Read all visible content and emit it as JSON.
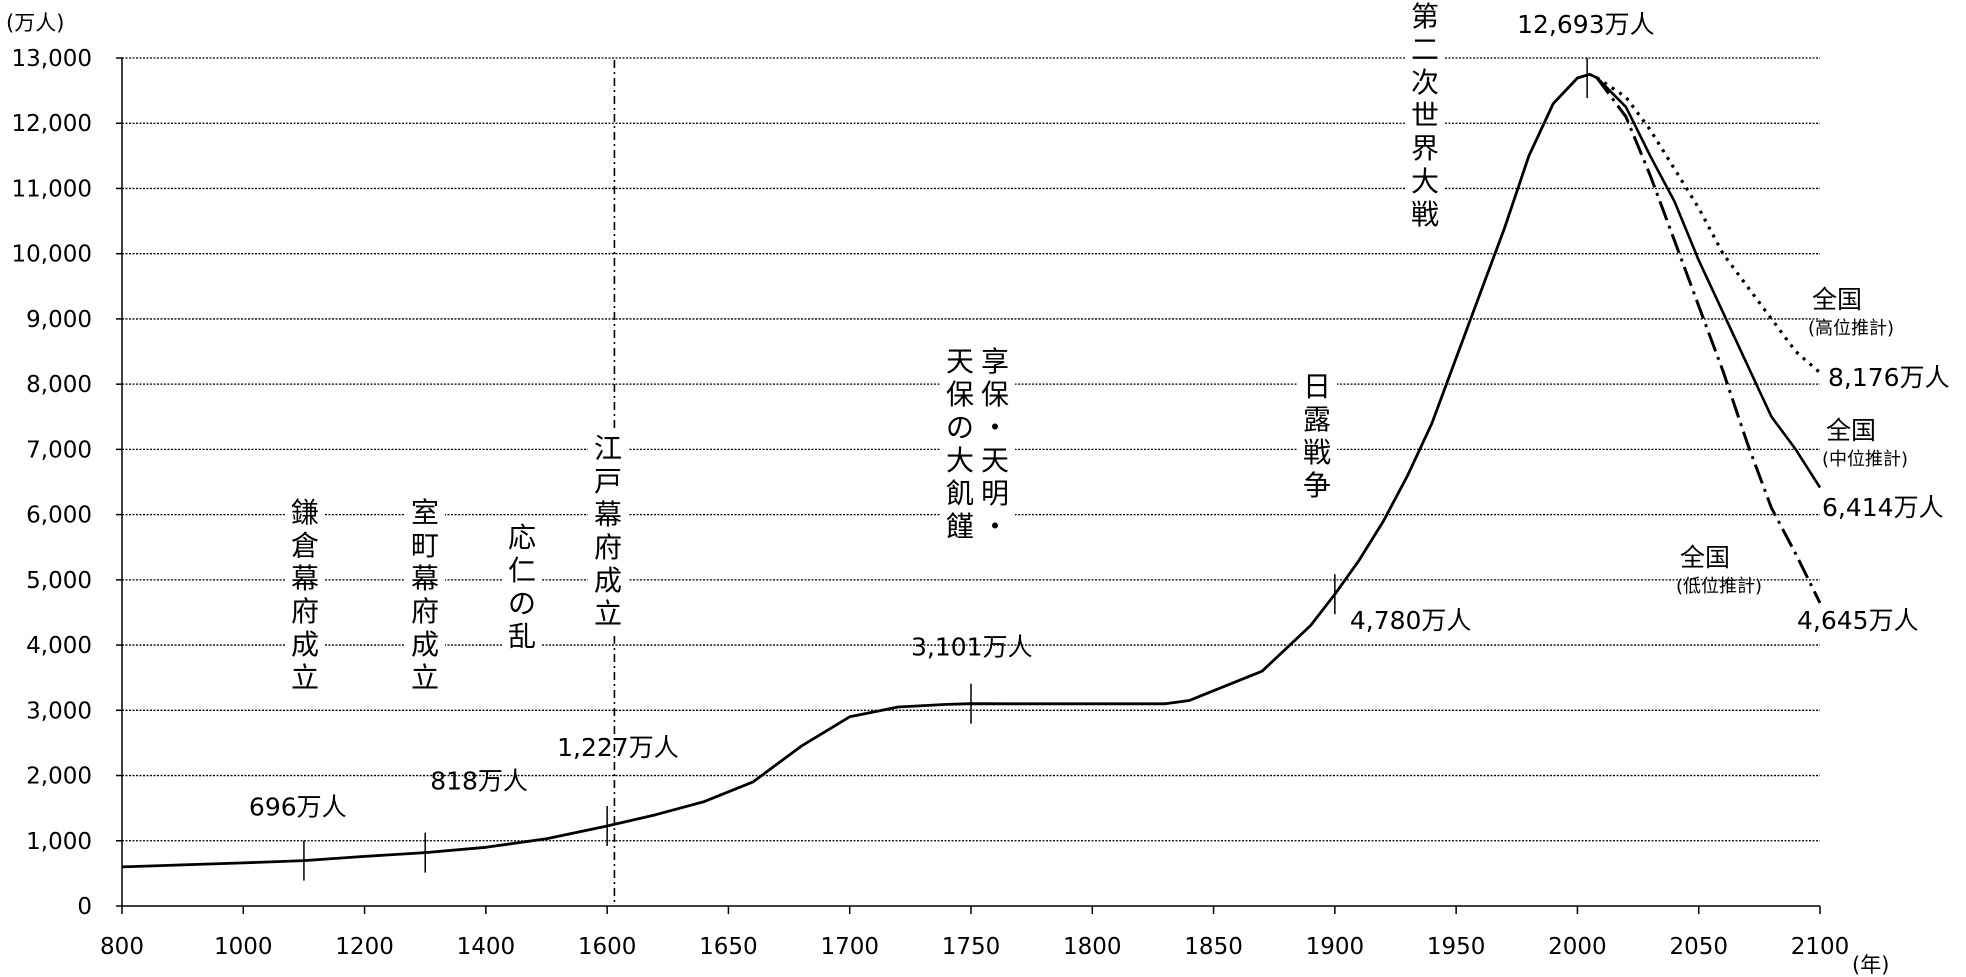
{
  "chart_data": {
    "type": "line",
    "title": "",
    "xlabel": "",
    "ylabel": "",
    "y_unit": "(万人)",
    "x_unit": "(年)",
    "ylim": [
      0,
      13000
    ],
    "grid": true,
    "x_ticks": [
      800,
      1000,
      1200,
      1400,
      1600,
      1650,
      1700,
      1750,
      1800,
      1850,
      1900,
      1950,
      2000,
      2050,
      2100
    ],
    "y_ticks": [
      "0",
      "1,000",
      "2,000",
      "3,000",
      "4,000",
      "5,000",
      "6,000",
      "7,000",
      "8,000",
      "9,000",
      "10,000",
      "11,000",
      "12,000",
      "13,000"
    ],
    "historical": {
      "x": [
        800,
        900,
        1000,
        1100,
        1200,
        1300,
        1400,
        1500,
        1600,
        1620,
        1640,
        1660,
        1680,
        1700,
        1720,
        1740,
        1750,
        1770,
        1800,
        1830,
        1840,
        1850,
        1870,
        1890,
        1900,
        1910,
        1920,
        1930,
        1940,
        1950,
        1960,
        1970,
        1980,
        1990,
        2000,
        2005,
        2008
      ],
      "values": [
        600,
        630,
        660,
        696,
        760,
        818,
        900,
        1030,
        1227,
        1400,
        1600,
        1900,
        2450,
        2900,
        3050,
        3090,
        3101,
        3100,
        3100,
        3100,
        3150,
        3300,
        3600,
        4300,
        4780,
        5300,
        5900,
        6600,
        7400,
        8400,
        9400,
        10400,
        11500,
        12300,
        12693,
        12750,
        12700
      ]
    },
    "series": [
      {
        "name": "全国(高位推計)",
        "x": [
          2008,
          2020,
          2030,
          2040,
          2050,
          2060,
          2070,
          2080,
          2090,
          2100
        ],
        "values": [
          12700,
          12400,
          11900,
          11300,
          10700,
          10000,
          9500,
          9000,
          8500,
          8176
        ]
      },
      {
        "name": "全国(中位推計)",
        "x": [
          2008,
          2020,
          2030,
          2040,
          2050,
          2060,
          2070,
          2080,
          2090,
          2100
        ],
        "values": [
          12700,
          12250,
          11500,
          10800,
          9900,
          9100,
          8300,
          7500,
          7000,
          6414
        ]
      },
      {
        "name": "全国(低位推計)",
        "x": [
          2008,
          2020,
          2030,
          2040,
          2050,
          2060,
          2070,
          2080,
          2090,
          2100
        ],
        "values": [
          12700,
          12100,
          11200,
          10200,
          9200,
          8200,
          7100,
          6100,
          5400,
          4645
        ]
      }
    ],
    "point_labels": [
      {
        "x": 1100,
        "y": 696,
        "text": "696万人"
      },
      {
        "x": 1300,
        "y": 818,
        "text": "818万人"
      },
      {
        "x": 1600,
        "y": 1227,
        "text": "1,227万人"
      },
      {
        "x": 1750,
        "y": 3101,
        "text": "3,101万人"
      },
      {
        "x": 1900,
        "y": 4780,
        "text": "4,780万人"
      },
      {
        "x": 2004,
        "y": 12693,
        "text": "12,693万人"
      }
    ],
    "end_labels": {
      "high": {
        "region": "全国",
        "kind": "(高位推計)",
        "value": "8,176万人"
      },
      "mid": {
        "region": "全国",
        "kind": "(中位推計)",
        "value": "6,414万人"
      },
      "low": {
        "region": "全国",
        "kind": "(低位推計)",
        "value": "4,645万人"
      }
    },
    "events": [
      {
        "x": 1150,
        "text": "鎌倉幕府成立"
      },
      {
        "x": 1300,
        "text": "室町幕府成立"
      },
      {
        "x": 1467,
        "text": "応仁の乱"
      },
      {
        "x": 1603,
        "text": "江戸幕府成立"
      },
      {
        "x": 1750,
        "text": "享保・天明・天保の大飢饉"
      },
      {
        "x": 1895,
        "text": "日露戦争"
      },
      {
        "x": 1945,
        "text": "第二次世界大戦"
      }
    ]
  }
}
